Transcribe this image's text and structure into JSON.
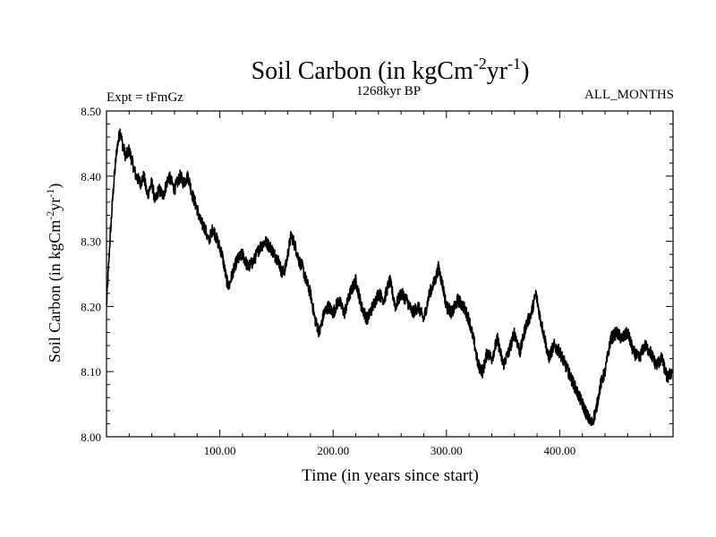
{
  "chart_data": {
    "type": "line",
    "title": "Soil Carbon (in kgCm",
    "title_sup1": "-2",
    "title_mid": "yr",
    "title_sup2": "-1",
    "title_end": ")",
    "subtitle_left": "Expt = tFmGz",
    "subtitle_center": "1268kyr BP",
    "subtitle_right": "ALL_MONTHS",
    "xlabel": "Time (in years since start)",
    "ylabel_main": "Soil Carbon (in kgCm",
    "ylabel_sup1": "-2",
    "ylabel_mid": "yr",
    "ylabel_sup2": "-1",
    "ylabel_end": ")",
    "xlim": [
      0,
      500
    ],
    "ylim": [
      8.0,
      8.5
    ],
    "xticks": [
      {
        "value": 100,
        "label": "100.00"
      },
      {
        "value": 200,
        "label": "200.00"
      },
      {
        "value": 300,
        "label": "300.00"
      },
      {
        "value": 400,
        "label": "400.00"
      }
    ],
    "yticks": [
      {
        "value": 8.0,
        "label": "8.00"
      },
      {
        "value": 8.1,
        "label": "8.10"
      },
      {
        "value": 8.2,
        "label": "8.20"
      },
      {
        "value": 8.3,
        "label": "8.30"
      },
      {
        "value": 8.4,
        "label": "8.40"
      },
      {
        "value": 8.5,
        "label": "8.50"
      }
    ],
    "grid": false,
    "line_color": "#000000",
    "series": [
      {
        "x": [
          0,
          3,
          6,
          9,
          12,
          14,
          17,
          20,
          23,
          26,
          30,
          33,
          36,
          40,
          43,
          46,
          50,
          55,
          60,
          65,
          68,
          72,
          76,
          80,
          83,
          87,
          90,
          94,
          98,
          102,
          106,
          108,
          111,
          115,
          120,
          125,
          130,
          135,
          140,
          145,
          148,
          152,
          155,
          158,
          160,
          163,
          167,
          170,
          173,
          176,
          180,
          184,
          188,
          192,
          196,
          200,
          205,
          210,
          215,
          220,
          225,
          230,
          235,
          240,
          245,
          250,
          255,
          260,
          265,
          270,
          275,
          280,
          285,
          290,
          293,
          297,
          300,
          305,
          310,
          315,
          320,
          325,
          328,
          332,
          336,
          340,
          345,
          350,
          355,
          360,
          365,
          370,
          375,
          379,
          383,
          387,
          390,
          395,
          400,
          405,
          410,
          415,
          420,
          425,
          428,
          432,
          436,
          440,
          445,
          450,
          455,
          460,
          465,
          470,
          475,
          480,
          485,
          490,
          495,
          499
        ],
        "y": [
          8.2,
          8.3,
          8.38,
          8.44,
          8.47,
          8.45,
          8.43,
          8.44,
          8.42,
          8.4,
          8.39,
          8.4,
          8.37,
          8.39,
          8.36,
          8.38,
          8.37,
          8.4,
          8.38,
          8.4,
          8.39,
          8.4,
          8.37,
          8.35,
          8.33,
          8.32,
          8.3,
          8.32,
          8.3,
          8.28,
          8.24,
          8.23,
          8.25,
          8.27,
          8.28,
          8.26,
          8.27,
          8.29,
          8.3,
          8.29,
          8.28,
          8.27,
          8.25,
          8.26,
          8.28,
          8.31,
          8.29,
          8.27,
          8.26,
          8.24,
          8.22,
          8.18,
          8.16,
          8.19,
          8.2,
          8.19,
          8.21,
          8.19,
          8.22,
          8.24,
          8.2,
          8.18,
          8.2,
          8.22,
          8.21,
          8.24,
          8.2,
          8.22,
          8.21,
          8.19,
          8.2,
          8.18,
          8.22,
          8.24,
          8.26,
          8.23,
          8.2,
          8.19,
          8.21,
          8.2,
          8.18,
          8.14,
          8.11,
          8.1,
          8.13,
          8.12,
          8.15,
          8.11,
          8.13,
          8.16,
          8.13,
          8.17,
          8.19,
          8.22,
          8.18,
          8.15,
          8.12,
          8.14,
          8.13,
          8.11,
          8.09,
          8.07,
          8.05,
          8.03,
          8.02,
          8.04,
          8.08,
          8.1,
          8.15,
          8.16,
          8.15,
          8.16,
          8.13,
          8.12,
          8.14,
          8.13,
          8.11,
          8.12,
          8.09,
          8.1
        ]
      }
    ]
  }
}
